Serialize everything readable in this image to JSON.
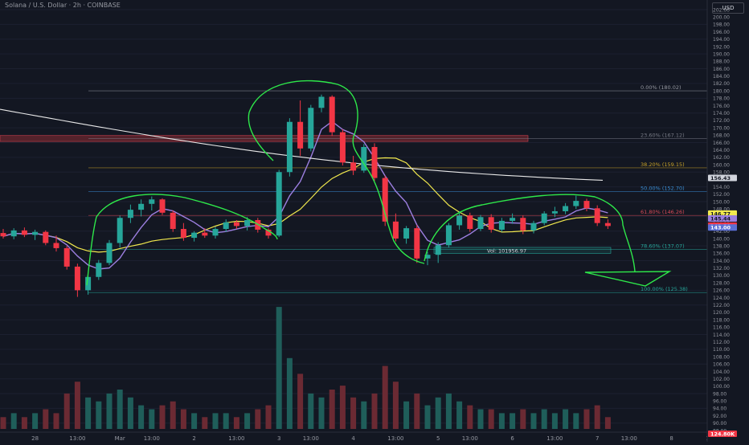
{
  "header": {
    "symbol_title": "Solana / U.S. Dollar · 2h · COINBASE",
    "currency": "USD"
  },
  "chart_data": {
    "type": "candlestick",
    "title": "Solana / U.S. Dollar · 2h · COINBASE",
    "ylim": [
      88,
      202
    ],
    "y_ticks": [
      "202.00",
      "200.00",
      "198.00",
      "196.00",
      "194.00",
      "192.00",
      "190.00",
      "188.00",
      "186.00",
      "184.00",
      "182.00",
      "180.00",
      "178.00",
      "176.00",
      "174.00",
      "172.00",
      "170.00",
      "168.00",
      "166.00",
      "164.00",
      "162.00",
      "160.00",
      "158.00",
      "156.00",
      "154.00",
      "152.00",
      "150.00",
      "148.00",
      "146.00",
      "144.00",
      "142.00",
      "140.00",
      "138.00",
      "136.00",
      "134.00",
      "132.00",
      "130.00",
      "128.00",
      "126.00",
      "124.00",
      "122.00",
      "120.00",
      "118.00",
      "116.00",
      "114.00",
      "112.00",
      "110.00",
      "108.00",
      "106.00",
      "104.00",
      "102.00",
      "100.00",
      "98.00",
      "96.00",
      "94.00",
      "92.00",
      "90.00",
      "88.00"
    ],
    "x_ticks": [
      {
        "label": "28",
        "i": 3
      },
      {
        "label": "13:00",
        "i": 7
      },
      {
        "label": "Mar",
        "i": 11
      },
      {
        "label": "13:00",
        "i": 14
      },
      {
        "label": "2",
        "i": 18
      },
      {
        "label": "13:00",
        "i": 22
      },
      {
        "label": "3",
        "i": 26
      },
      {
        "label": "13:00",
        "i": 29
      },
      {
        "label": "4",
        "i": 33
      },
      {
        "label": "13:00",
        "i": 37
      },
      {
        "label": "5",
        "i": 41
      },
      {
        "label": "13:00",
        "i": 44
      },
      {
        "label": "6",
        "i": 48
      },
      {
        "label": "13:00",
        "i": 52
      },
      {
        "label": "7",
        "i": 56
      },
      {
        "label": "13:00",
        "i": 59
      },
      {
        "label": "8",
        "i": 63
      },
      {
        "label": "13:00",
        "i": 67
      }
    ],
    "candles": [
      {
        "o": 141.5,
        "h": 142.6,
        "l": 140.0,
        "c": 140.6,
        "v": 3
      },
      {
        "o": 140.6,
        "h": 142.8,
        "l": 139.8,
        "c": 142.2,
        "v": 4
      },
      {
        "o": 142.2,
        "h": 143.0,
        "l": 140.4,
        "c": 141.0,
        "v": 3
      },
      {
        "o": 141.0,
        "h": 142.4,
        "l": 139.6,
        "c": 141.8,
        "v": 4
      },
      {
        "o": 141.8,
        "h": 142.2,
        "l": 138.2,
        "c": 138.8,
        "v": 5
      },
      {
        "o": 138.8,
        "h": 140.8,
        "l": 136.5,
        "c": 137.4,
        "v": 4
      },
      {
        "o": 137.4,
        "h": 138.0,
        "l": 131.6,
        "c": 132.4,
        "v": 9
      },
      {
        "o": 132.4,
        "h": 133.2,
        "l": 124.2,
        "c": 126.0,
        "v": 12
      },
      {
        "o": 126.0,
        "h": 130.4,
        "l": 124.8,
        "c": 129.6,
        "v": 8
      },
      {
        "o": 129.6,
        "h": 134.2,
        "l": 128.8,
        "c": 133.4,
        "v": 7
      },
      {
        "o": 133.4,
        "h": 139.6,
        "l": 132.8,
        "c": 138.8,
        "v": 9
      },
      {
        "o": 138.8,
        "h": 146.2,
        "l": 137.6,
        "c": 145.6,
        "v": 10
      },
      {
        "o": 145.6,
        "h": 149.2,
        "l": 144.2,
        "c": 147.8,
        "v": 8
      },
      {
        "o": 147.8,
        "h": 150.6,
        "l": 146.0,
        "c": 149.4,
        "v": 6
      },
      {
        "o": 149.4,
        "h": 151.4,
        "l": 147.6,
        "c": 150.6,
        "v": 5
      },
      {
        "o": 150.6,
        "h": 150.9,
        "l": 146.4,
        "c": 147.0,
        "v": 6
      },
      {
        "o": 147.0,
        "h": 147.6,
        "l": 141.8,
        "c": 142.6,
        "v": 7
      },
      {
        "o": 142.6,
        "h": 144.2,
        "l": 139.4,
        "c": 140.2,
        "v": 5
      },
      {
        "o": 140.2,
        "h": 142.0,
        "l": 139.2,
        "c": 141.6,
        "v": 4
      },
      {
        "o": 141.6,
        "h": 142.8,
        "l": 140.2,
        "c": 140.8,
        "v": 3
      },
      {
        "o": 140.8,
        "h": 143.2,
        "l": 140.0,
        "c": 142.6,
        "v": 4
      },
      {
        "o": 142.6,
        "h": 145.2,
        "l": 141.8,
        "c": 144.4,
        "v": 4
      },
      {
        "o": 144.4,
        "h": 145.0,
        "l": 142.6,
        "c": 143.4,
        "v": 3
      },
      {
        "o": 143.4,
        "h": 145.8,
        "l": 142.2,
        "c": 145.0,
        "v": 4
      },
      {
        "o": 145.0,
        "h": 145.6,
        "l": 141.6,
        "c": 142.4,
        "v": 5
      },
      {
        "o": 142.4,
        "h": 142.8,
        "l": 140.0,
        "c": 140.8,
        "v": 6
      },
      {
        "o": 140.8,
        "h": 158.6,
        "l": 140.4,
        "c": 158.0,
        "v": 31
      },
      {
        "o": 158.0,
        "h": 172.6,
        "l": 156.8,
        "c": 171.6,
        "v": 18
      },
      {
        "o": 171.6,
        "h": 177.4,
        "l": 162.4,
        "c": 164.4,
        "v": 14
      },
      {
        "o": 164.4,
        "h": 176.2,
        "l": 163.6,
        "c": 175.4,
        "v": 9
      },
      {
        "o": 175.4,
        "h": 179.0,
        "l": 174.2,
        "c": 178.4,
        "v": 8
      },
      {
        "o": 178.4,
        "h": 178.8,
        "l": 167.8,
        "c": 168.8,
        "v": 10
      },
      {
        "o": 168.8,
        "h": 169.6,
        "l": 159.8,
        "c": 160.6,
        "v": 11
      },
      {
        "o": 160.6,
        "h": 162.4,
        "l": 157.2,
        "c": 158.4,
        "v": 8
      },
      {
        "o": 158.4,
        "h": 165.6,
        "l": 157.8,
        "c": 164.8,
        "v": 7
      },
      {
        "o": 164.8,
        "h": 165.8,
        "l": 155.6,
        "c": 156.4,
        "v": 9
      },
      {
        "o": 156.4,
        "h": 157.0,
        "l": 143.4,
        "c": 144.6,
        "v": 16
      },
      {
        "o": 144.6,
        "h": 146.8,
        "l": 139.2,
        "c": 140.0,
        "v": 12
      },
      {
        "o": 140.0,
        "h": 143.4,
        "l": 138.6,
        "c": 142.8,
        "v": 7
      },
      {
        "o": 142.8,
        "h": 143.6,
        "l": 133.4,
        "c": 134.6,
        "v": 9
      },
      {
        "o": 134.6,
        "h": 136.4,
        "l": 132.8,
        "c": 135.6,
        "v": 6
      },
      {
        "o": 135.6,
        "h": 139.0,
        "l": 133.4,
        "c": 138.2,
        "v": 8
      },
      {
        "o": 138.2,
        "h": 144.2,
        "l": 137.6,
        "c": 143.6,
        "v": 9
      },
      {
        "o": 143.6,
        "h": 147.4,
        "l": 142.4,
        "c": 146.2,
        "v": 7
      },
      {
        "o": 146.2,
        "h": 147.0,
        "l": 141.8,
        "c": 142.6,
        "v": 6
      },
      {
        "o": 142.6,
        "h": 146.4,
        "l": 142.0,
        "c": 145.8,
        "v": 5
      },
      {
        "o": 145.8,
        "h": 146.6,
        "l": 141.6,
        "c": 142.4,
        "v": 5
      },
      {
        "o": 142.4,
        "h": 145.6,
        "l": 141.8,
        "c": 144.8,
        "v": 4
      },
      {
        "o": 144.8,
        "h": 146.8,
        "l": 144.0,
        "c": 145.6,
        "v": 4
      },
      {
        "o": 145.6,
        "h": 146.2,
        "l": 141.2,
        "c": 142.2,
        "v": 5
      },
      {
        "o": 142.2,
        "h": 144.8,
        "l": 141.4,
        "c": 144.2,
        "v": 4
      },
      {
        "o": 144.2,
        "h": 147.4,
        "l": 143.6,
        "c": 146.8,
        "v": 5
      },
      {
        "o": 146.8,
        "h": 148.6,
        "l": 145.8,
        "c": 147.4,
        "v": 4
      },
      {
        "o": 147.4,
        "h": 149.6,
        "l": 146.6,
        "c": 148.8,
        "v": 5
      },
      {
        "o": 148.8,
        "h": 151.6,
        "l": 148.0,
        "c": 150.2,
        "v": 4
      },
      {
        "o": 150.2,
        "h": 150.8,
        "l": 147.4,
        "c": 148.2,
        "v": 5
      },
      {
        "o": 148.2,
        "h": 149.0,
        "l": 143.4,
        "c": 144.2,
        "v": 6
      },
      {
        "o": 144.2,
        "h": 145.2,
        "l": 142.6,
        "c": 143.4,
        "v": 3
      }
    ],
    "fib_levels": [
      {
        "label": "0.00% (180.02)",
        "value": 180.02
      },
      {
        "label": "23.60% (167.12)",
        "value": 167.12
      },
      {
        "label": "38.20% (159.15)",
        "value": 159.15
      },
      {
        "label": "50.00% (152.70)",
        "value": 152.7
      },
      {
        "label": "61.80% (146.26)",
        "value": 146.26
      },
      {
        "label": "78.60% (137.07)",
        "value": 137.07
      },
      {
        "label": "100.00% (125.38)",
        "value": 125.38
      }
    ],
    "price_labels": [
      {
        "text": "156.43",
        "value": 156.43,
        "color": "#d1d4dc",
        "text_color": "#131722"
      },
      {
        "text": "146.77",
        "value": 146.77,
        "color": "#f2e94e",
        "text_color": "#131722"
      },
      {
        "text": "145.44",
        "value": 145.44,
        "color": "#9c7fe0",
        "text_color": "#131722"
      },
      {
        "text": "143.50",
        "value": 143.5,
        "color": "#f23645",
        "text_color": "#ffffff"
      },
      {
        "text": "143.00",
        "value": 143.0,
        "color": "#5b6fd6",
        "text_color": "#ffffff"
      }
    ],
    "range_annotation": "Vol: 101956.97",
    "bottom_axis_label": "124.80K",
    "colors": {
      "up": "#26a69a",
      "down": "#f23645",
      "ma_white": "#e8e8e8",
      "ma_yellow": "#f2e94e",
      "ma_purple": "#9c7fe0",
      "drawing": "#2ee84a",
      "background": "#131722"
    }
  }
}
